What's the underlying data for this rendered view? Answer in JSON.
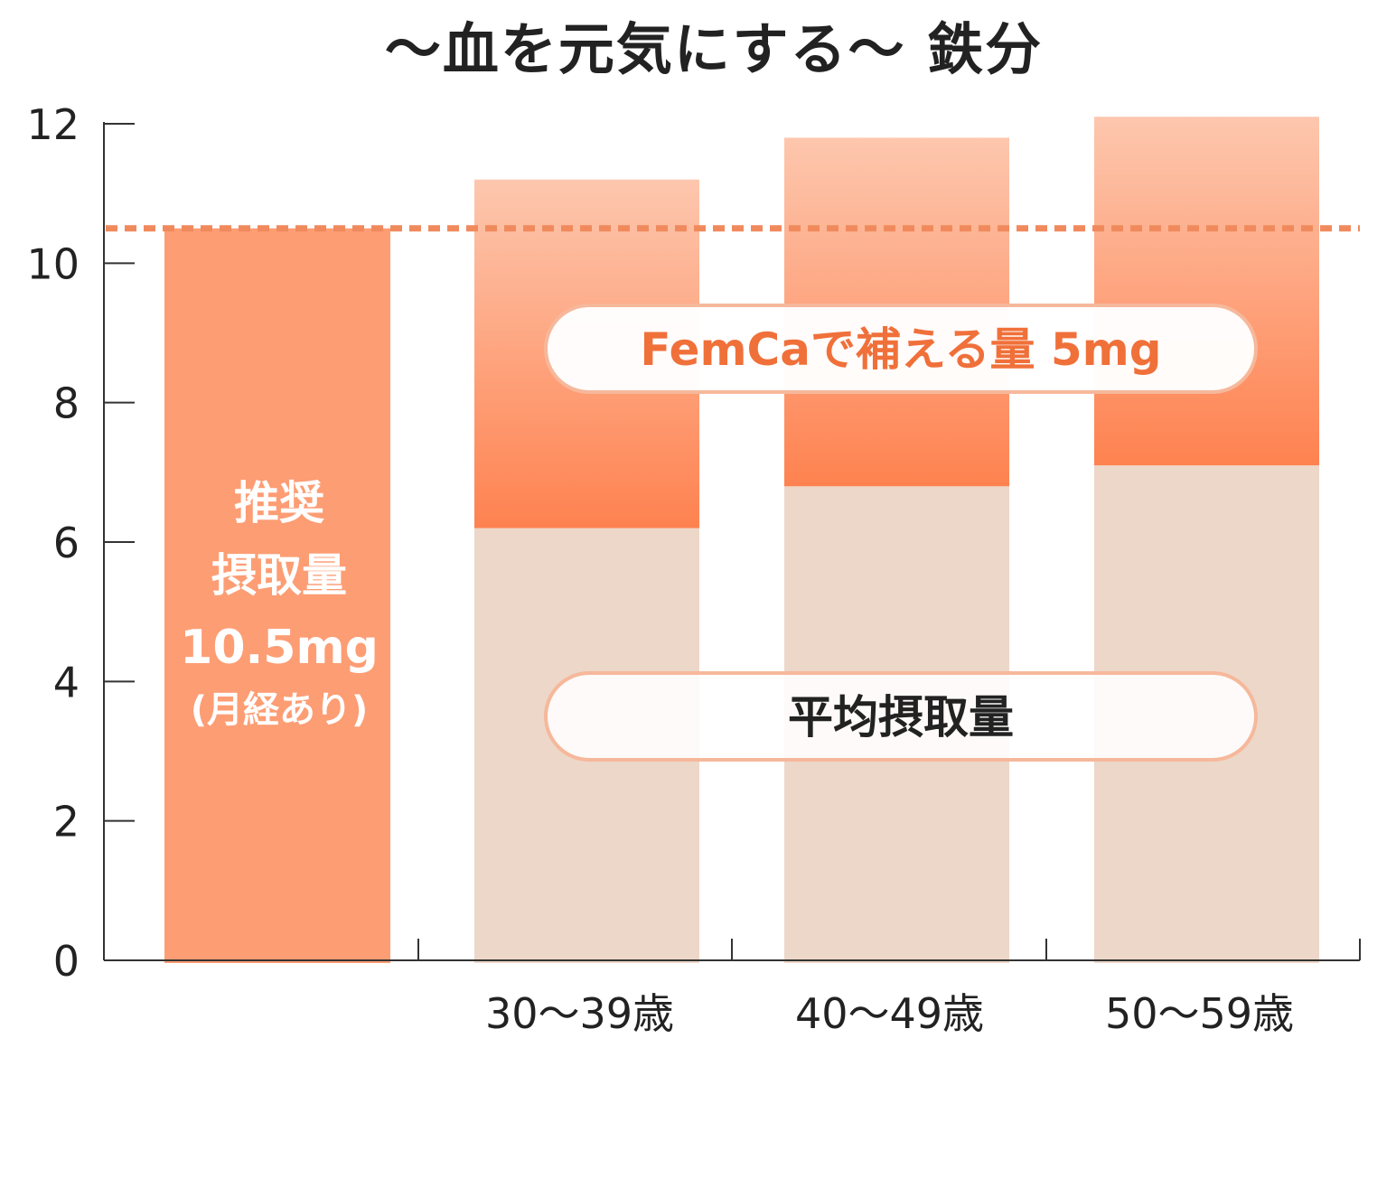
{
  "title": "〜血を元気にする〜 鉄分",
  "chart_data": {
    "type": "bar",
    "title": "〜血を元気にする〜 鉄分",
    "ylim": [
      0,
      12
    ],
    "yticks": [
      "0",
      "2",
      "4",
      "6",
      "8",
      "10",
      "12"
    ],
    "recommended": {
      "value": 10.5,
      "label_lines": [
        "推奨",
        "摂取量",
        "10.5mg"
      ],
      "note": "(月経あり)",
      "color": "#fd9d74"
    },
    "categories": [
      "30〜39歳",
      "40〜49歳",
      "50〜59歳"
    ],
    "series": [
      {
        "name": "平均摂取量",
        "values": [
          6.2,
          6.8,
          7.1
        ],
        "color": "#edd7c8"
      },
      {
        "name": "FemCaで補える量 5mg",
        "values": [
          5,
          5,
          5
        ],
        "color_top": "#fdc7ae",
        "color_bottom": "#fe8250"
      }
    ],
    "reference_line": {
      "value": 10.5,
      "style": "dashed",
      "color": "#f08a5d"
    }
  }
}
